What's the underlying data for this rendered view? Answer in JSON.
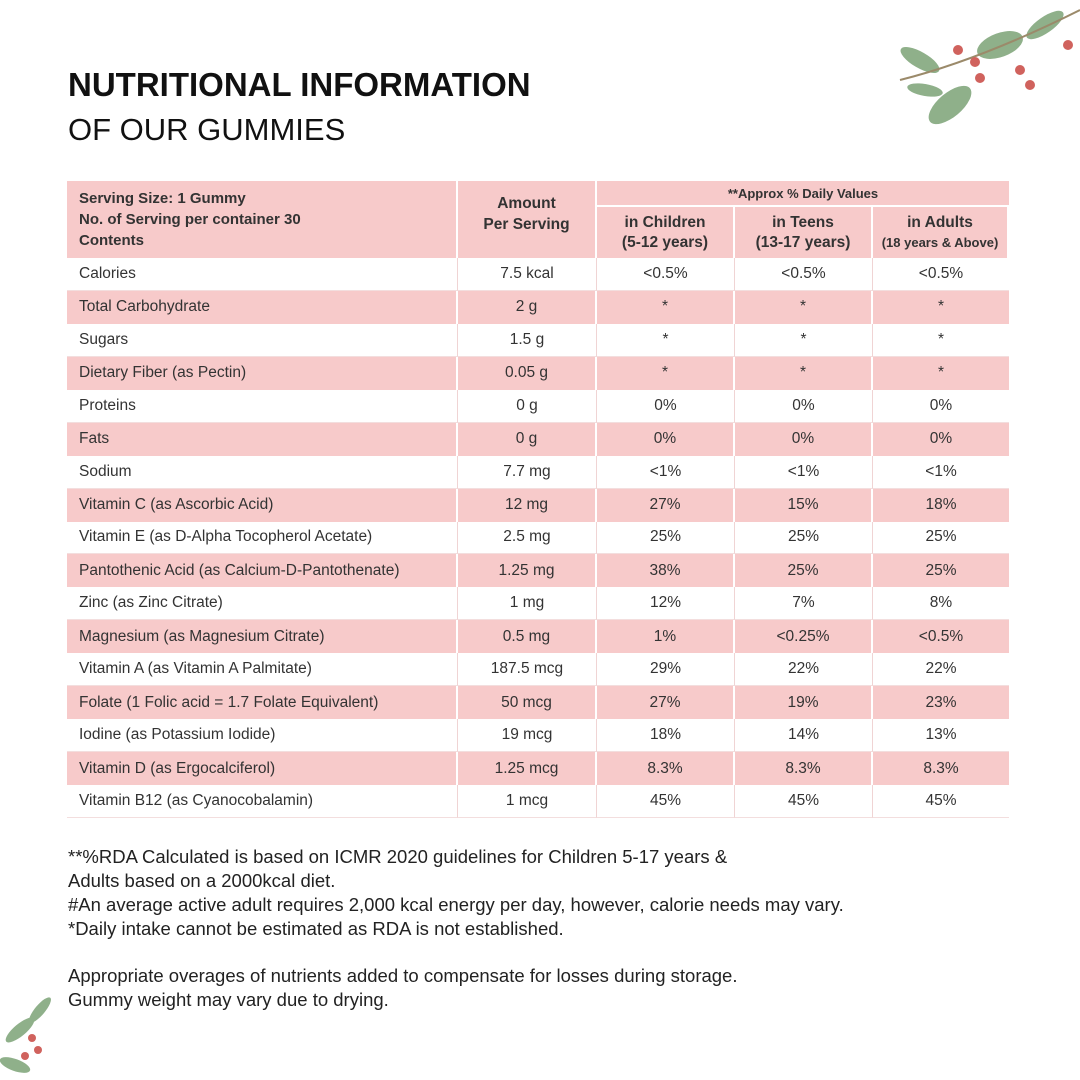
{
  "header": {
    "title": "NUTRITIONAL INFORMATION",
    "subtitle": "OF OUR GUMMIES"
  },
  "table": {
    "serving_info": [
      "Serving Size: 1 Gummy",
      "No. of Serving per container 30",
      "Contents"
    ],
    "amount_header": [
      "Amount",
      "Per Serving"
    ],
    "daily_values_header": "**Approx % Daily Values",
    "columns": [
      [
        "in Children",
        "(5-12 years)"
      ],
      [
        "in Teens",
        "(13-17 years)"
      ],
      [
        "in Adults",
        "(18 years & Above)"
      ]
    ],
    "rows": [
      [
        "Calories",
        "7.5 kcal",
        "<0.5%",
        "<0.5%",
        "<0.5%"
      ],
      [
        "Total Carbohydrate",
        "2 g",
        "*",
        "*",
        "*"
      ],
      [
        "Sugars",
        "1.5 g",
        "*",
        "*",
        "*"
      ],
      [
        "Dietary Fiber (as Pectin)",
        "0.05 g",
        "*",
        "*",
        "*"
      ],
      [
        "Proteins",
        "0 g",
        "0%",
        "0%",
        "0%"
      ],
      [
        "Fats",
        "0 g",
        "0%",
        "0%",
        "0%"
      ],
      [
        "Sodium",
        "7.7 mg",
        "<1%",
        "<1%",
        "<1%"
      ],
      [
        "Vitamin C (as Ascorbic Acid)",
        "12 mg",
        "27%",
        "15%",
        "18%"
      ],
      [
        "Vitamin E (as D-Alpha Tocopherol Acetate)",
        "2.5 mg",
        "25%",
        "25%",
        "25%"
      ],
      [
        "Pantothenic Acid (as Calcium-D-Pantothenate)",
        "1.25 mg",
        "38%",
        "25%",
        "25%"
      ],
      [
        "Zinc (as Zinc Citrate)",
        "1 mg",
        "12%",
        "7%",
        "8%"
      ],
      [
        "Magnesium (as Magnesium Citrate)",
        "0.5 mg",
        "1%",
        "<0.25%",
        "<0.5%"
      ],
      [
        "Vitamin A (as Vitamin A Palmitate)",
        "187.5 mcg",
        "29%",
        "22%",
        "22%"
      ],
      [
        "Folate (1 Folic acid = 1.7 Folate Equivalent)",
        "50 mcg",
        "27%",
        "19%",
        "23%"
      ],
      [
        "Iodine (as Potassium Iodide)",
        "19 mcg",
        "18%",
        "14%",
        "13%"
      ],
      [
        "Vitamin D (as Ergocalciferol)",
        "1.25 mcg",
        "8.3%",
        "8.3%",
        "8.3%"
      ],
      [
        "Vitamin B12 (as Cyanocobalamin)",
        "1 mcg",
        "45%",
        "45%",
        "45%"
      ]
    ]
  },
  "footnotes": [
    "**%RDA Calculated is based on ICMR 2020 guidelines for Children 5-17 years &",
    "Adults based on a 2000kcal diet.",
    "#An average active adult requires 2,000 kcal energy per day, however, calorie needs may vary.",
    "*Daily intake cannot be estimated as RDA is not established."
  ],
  "notes": [
    "Appropriate overages of nutrients added to compensate for losses during storage.",
    "Gummy weight may vary due to drying."
  ]
}
